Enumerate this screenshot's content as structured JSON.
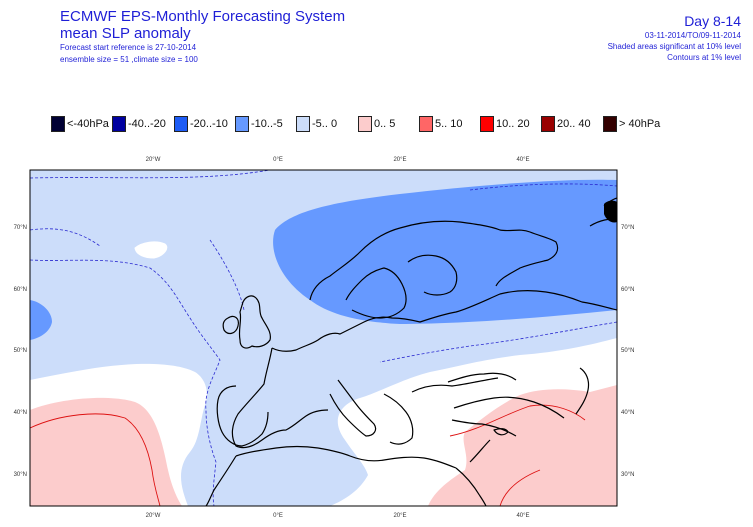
{
  "header": {
    "title_line1": "ECMWF EPS-Monthly Forecasting System",
    "title_line2": "mean SLP anomaly",
    "meta_line1": "Forecast start reference is 27-10-2014",
    "meta_line2": "ensemble size = 51 ,climate size = 100",
    "day_label": "Day 8-14",
    "right_line1": "03-11-2014/TO/09-11-2014",
    "right_line2": "Shaded areas significant at 10% level",
    "right_line3": "Contours at 1% level"
  },
  "legend": [
    {
      "label": "<-40hPa",
      "color": "#000033"
    },
    {
      "label": "-40..-20",
      "color": "#0000a0"
    },
    {
      "label": "-20..-10",
      "color": "#1e5cf5"
    },
    {
      "label": "-10..-5",
      "color": "#6699ff"
    },
    {
      "label": "-5.. 0",
      "color": "#ccddfa"
    },
    {
      "label": "0.. 5",
      "color": "#fccccc"
    },
    {
      "label": "5.. 10",
      "color": "#ff6666"
    },
    {
      "label": "10.. 20",
      "color": "#ff0000"
    },
    {
      "label": "20.. 40",
      "color": "#990000"
    },
    {
      "label": "> 40hPa",
      "color": "#330000"
    }
  ],
  "map": {
    "top_lon_labels": [
      "20°W",
      "0°E",
      "20°E",
      "40°E"
    ],
    "bottom_lon_labels": [
      "20°W",
      "0°E",
      "20°E",
      "40°E"
    ],
    "left_lat_labels": [
      "70°N",
      "60°N",
      "50°N",
      "40°N",
      "30°N"
    ],
    "right_lat_labels": [
      "70°N",
      "60°N",
      "50°N",
      "40°N",
      "30°N"
    ],
    "colors": {
      "ocean_bg": "#ffffff",
      "light_blue": "#ccddfa",
      "mid_blue": "#6699ff",
      "light_pink": "#fccccc",
      "contour_blue": "#2a2ad0",
      "contour_red": "#dd1111",
      "coast": "#000000"
    }
  }
}
